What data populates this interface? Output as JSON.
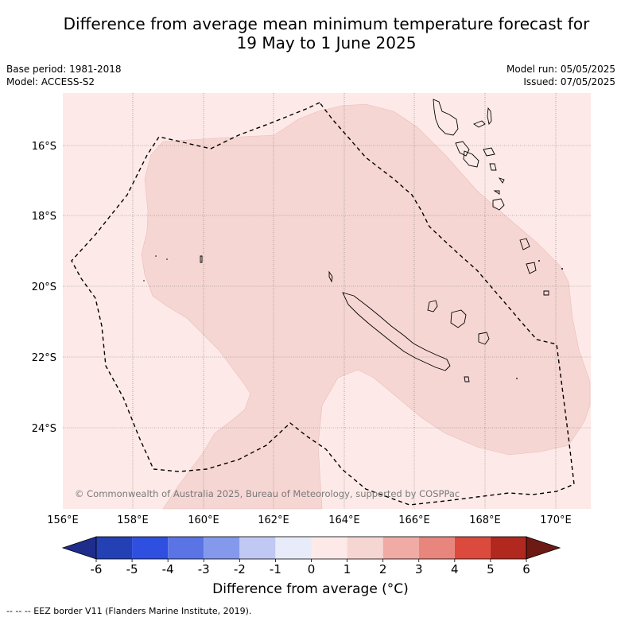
{
  "title_line1": "Difference from average mean minimum temperature forecast for",
  "title_line2": "19 May to 1 June 2025",
  "base_period": "Base period: 1981-2018",
  "model": "Model: ACCESS-S2",
  "model_run": "Model run: 05/05/2025",
  "issued": "Issued: 07/05/2025",
  "copyright": "© Commonwealth of Australia 2025, Bureau of Meteorology, supported by COSPPac",
  "lat_labels": [
    "16°S",
    "18°S",
    "20°S",
    "22°S",
    "24°S"
  ],
  "lon_labels": [
    "156°E",
    "158°E",
    "160°E",
    "162°E",
    "164°E",
    "166°E",
    "168°E",
    "170°E"
  ],
  "colorbar": {
    "ticks": [
      "-6",
      "-5",
      "-4",
      "-3",
      "-2",
      "-1",
      "0",
      "1",
      "2",
      "3",
      "4",
      "5",
      "6"
    ],
    "colors": [
      "#1e2c8c",
      "#2340b4",
      "#2e4fe0",
      "#5a74e6",
      "#8498ec",
      "#c0c8f4",
      "#e8ecfa",
      "#fdeae8",
      "#f6d6d3",
      "#f0aba5",
      "#e8857c",
      "#dc4a3e",
      "#b0281e",
      "#6e1a14"
    ],
    "label": "Difference from average (°C)"
  },
  "colors": {
    "background_anomaly": "#fdeae8",
    "region_anomaly": "#f6d6d3"
  },
  "footer": "-- -- -- EEZ border V11 (Flanders Marine Institute, 2019)."
}
